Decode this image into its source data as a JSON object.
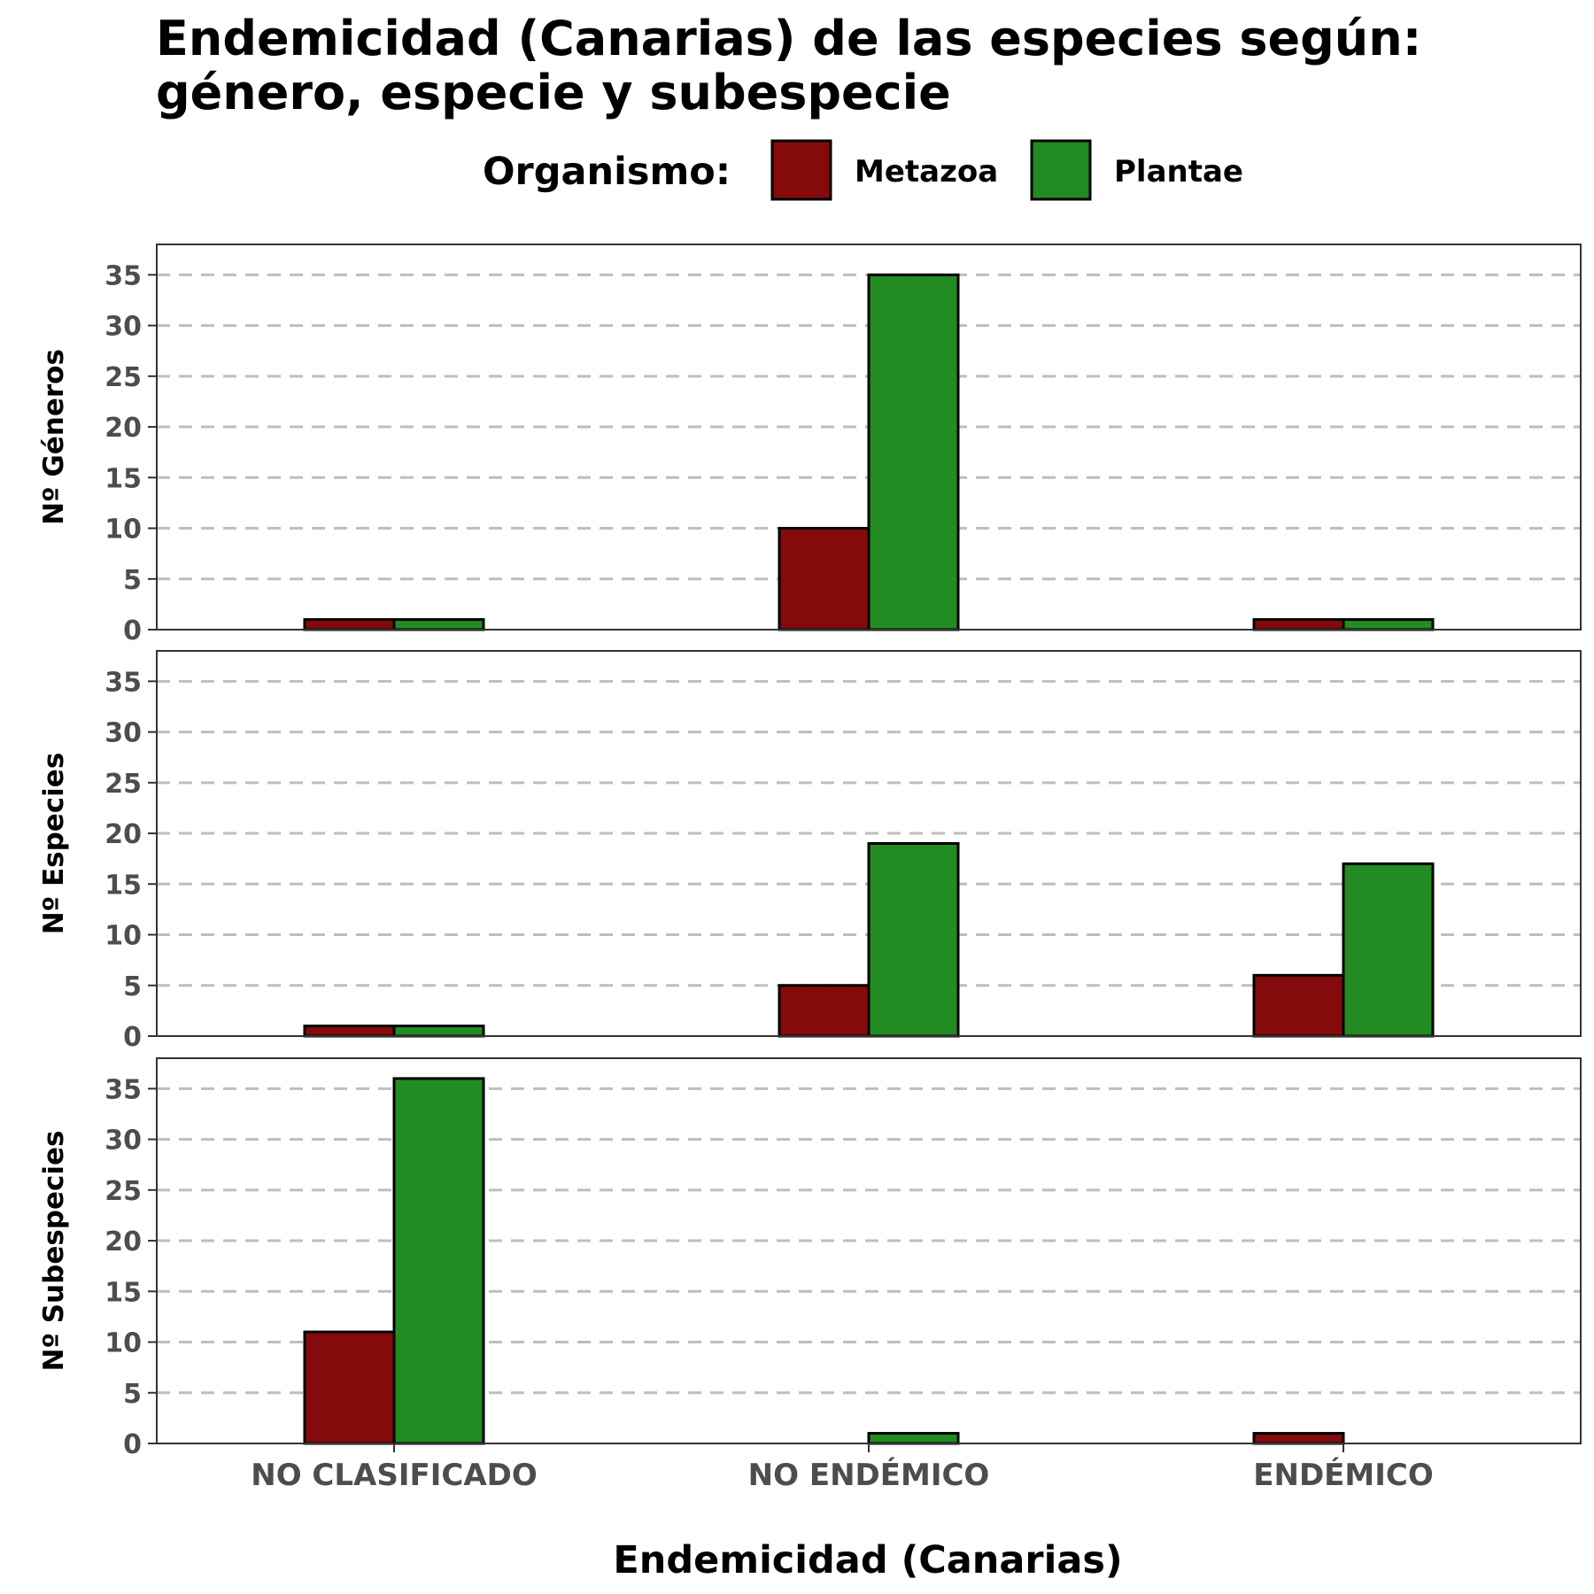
{
  "chart_data": {
    "type": "bar",
    "title_lines": [
      "Endemicidad (Canarias) de las especies según:",
      "género, especie y subespecie"
    ],
    "legend": {
      "title": "Organismo:",
      "placement": "top",
      "entries": [
        {
          "name": "Metazoa",
          "color": "#850a0c"
        },
        {
          "name": "Plantae",
          "color": "#228b22"
        }
      ]
    },
    "categories": [
      "NO CLASIFICADO",
      "NO ENDÉMICO",
      "ENDÉMICO"
    ],
    "xlabel": "Endemicidad (Canarias)",
    "ylim": [
      0,
      38
    ],
    "yticks": [
      0,
      5,
      10,
      15,
      20,
      25,
      30,
      35
    ],
    "grid": "horizontal dashed",
    "panels": [
      {
        "ylabel": "Nº Géneros",
        "series": [
          {
            "name": "Metazoa",
            "values": [
              1,
              10,
              1
            ]
          },
          {
            "name": "Plantae",
            "values": [
              1,
              35,
              1
            ]
          }
        ]
      },
      {
        "ylabel": "Nº Especies",
        "series": [
          {
            "name": "Metazoa",
            "values": [
              1,
              5,
              6
            ]
          },
          {
            "name": "Plantae",
            "values": [
              1,
              19,
              17
            ]
          }
        ]
      },
      {
        "ylabel": "Nº Subespecies",
        "series": [
          {
            "name": "Metazoa",
            "values": [
              11,
              0,
              1
            ]
          },
          {
            "name": "Plantae",
            "values": [
              36,
              1,
              0
            ]
          }
        ]
      }
    ]
  }
}
